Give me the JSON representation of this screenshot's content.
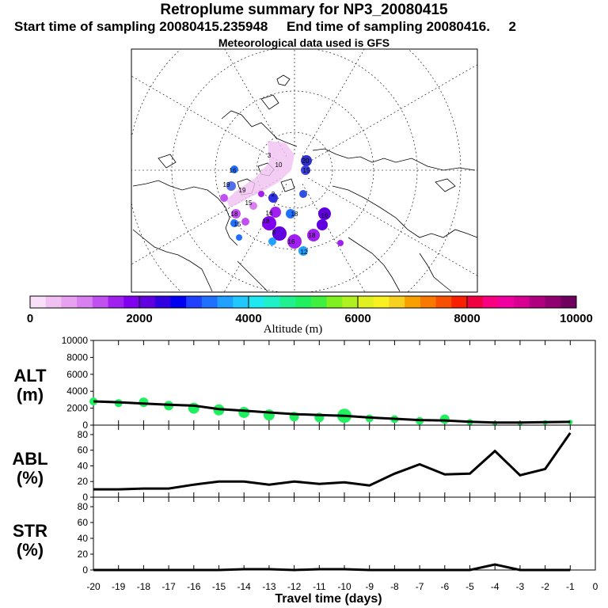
{
  "header": {
    "title": "Retroplume summary for NP3_20080415",
    "sampling": "Start time of sampling 20080415.235948     End time of sampling 20080416.     2",
    "met": "Meteorological data used is GFS"
  },
  "map": {
    "labels": [
      "20",
      "15",
      "3",
      "10",
      "16",
      "18",
      "16",
      "18",
      "2",
      "16",
      "15",
      "16",
      "18",
      "15",
      "19",
      "18",
      "8",
      "12",
      "19"
    ]
  },
  "colorbar": {
    "title": "Altitude (m)",
    "ticks": [
      "0",
      "2000",
      "4000",
      "6000",
      "8000",
      "10000"
    ],
    "colors": [
      "#f8e0f8",
      "#f0c0f0",
      "#e8a0f0",
      "#d880f0",
      "#c050f0",
      "#a020f0",
      "#8000f0",
      "#6000e0",
      "#3000e0",
      "#0000f0",
      "#2040ff",
      "#2070ff",
      "#20a0ff",
      "#20c8ff",
      "#20e8f0",
      "#20f0c8",
      "#20f090",
      "#20f060",
      "#40f040",
      "#80f020",
      "#b0f020",
      "#e0f020",
      "#f8f020",
      "#f8d020",
      "#f8a000",
      "#f87800",
      "#f85000",
      "#f82000",
      "#f00040",
      "#f80080",
      "#f000a0",
      "#d80090",
      "#b00080",
      "#900070",
      "#700060"
    ]
  },
  "chart_data": [
    {
      "type": "line",
      "title": "ALT",
      "ylabel": "ALT (m)",
      "ylim": [
        0,
        10000
      ],
      "yticks": [
        "0",
        "2000",
        "4000",
        "6000",
        "8000",
        "10000"
      ],
      "x": [
        -20,
        -19,
        -18,
        -17,
        -16,
        -15,
        -14,
        -13,
        -12,
        -11,
        -10,
        -9,
        -8,
        -7,
        -6,
        -5,
        -4,
        -3,
        -2,
        -1
      ],
      "values": [
        2800,
        2700,
        2550,
        2400,
        2300,
        1900,
        1700,
        1500,
        1300,
        1200,
        1100,
        900,
        750,
        600,
        550,
        400,
        300,
        300,
        350,
        380
      ],
      "scatter_series": [
        {
          "x": -20,
          "y": 2800,
          "r": 5
        },
        {
          "x": -19,
          "y": 2600,
          "r": 5
        },
        {
          "x": -18,
          "y": 2700,
          "r": 6
        },
        {
          "x": -17,
          "y": 2300,
          "r": 6
        },
        {
          "x": -16,
          "y": 2000,
          "r": 7
        },
        {
          "x": -15,
          "y": 1800,
          "r": 7
        },
        {
          "x": -14,
          "y": 1500,
          "r": 7
        },
        {
          "x": -13,
          "y": 1200,
          "r": 7
        },
        {
          "x": -12,
          "y": 1000,
          "r": 6
        },
        {
          "x": -11,
          "y": 900,
          "r": 6
        },
        {
          "x": -10,
          "y": 1100,
          "r": 9
        },
        {
          "x": -9,
          "y": 800,
          "r": 5
        },
        {
          "x": -8,
          "y": 700,
          "r": 5
        },
        {
          "x": -7,
          "y": 500,
          "r": 5
        },
        {
          "x": -6,
          "y": 700,
          "r": 6
        },
        {
          "x": -5,
          "y": 350,
          "r": 4
        },
        {
          "x": -4,
          "y": 200,
          "r": 3
        },
        {
          "x": -3,
          "y": 200,
          "r": 3
        },
        {
          "x": -2,
          "y": 300,
          "r": 3
        },
        {
          "x": -1,
          "y": 350,
          "r": 3
        }
      ]
    },
    {
      "type": "line",
      "title": "ABL",
      "ylabel": "ABL (%)",
      "ylim": [
        0,
        90
      ],
      "yticks": [
        "0",
        "20",
        "40",
        "60",
        "80"
      ],
      "x": [
        -20,
        -19,
        -18,
        -17,
        -16,
        -15,
        -14,
        -13,
        -12,
        -11,
        -10,
        -9,
        -8,
        -7,
        -6,
        -5,
        -4,
        -3,
        -2,
        -1
      ],
      "values": [
        10,
        10,
        11,
        11,
        16,
        20,
        20,
        16,
        20,
        17,
        19,
        15,
        30,
        42,
        29,
        30,
        59,
        28,
        36,
        82
      ]
    },
    {
      "type": "line",
      "title": "STR",
      "ylabel": "STR (%)",
      "ylim": [
        0,
        90
      ],
      "yticks": [
        "0",
        "20",
        "40",
        "60",
        "80"
      ],
      "x": [
        -20,
        -19,
        -18,
        -17,
        -16,
        -15,
        -14,
        -13,
        -12,
        -11,
        -10,
        -9,
        -8,
        -7,
        -6,
        -5,
        -4,
        -3,
        -2,
        -1
      ],
      "values": [
        0,
        0,
        0,
        0,
        0,
        0,
        1,
        1,
        0,
        1,
        1,
        0,
        0,
        0,
        0,
        0,
        7,
        0,
        0,
        0
      ]
    }
  ],
  "xaxis": {
    "label": "Travel time (days)",
    "ticks": [
      "-20",
      "-19",
      "-18",
      "-17",
      "-16",
      "-15",
      "-14",
      "-13",
      "-12",
      "-11",
      "-10",
      "-9",
      "-8",
      "-7",
      "-6",
      "-5",
      "-4",
      "-3",
      "-2",
      "-1",
      "0"
    ]
  }
}
